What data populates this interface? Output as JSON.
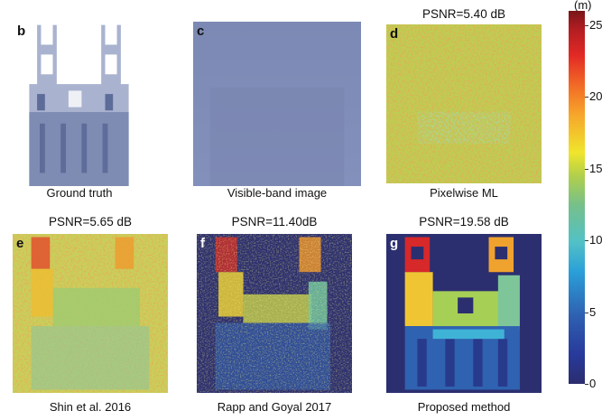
{
  "panels": [
    {
      "letter": "b",
      "caption": "Ground truth",
      "title": ""
    },
    {
      "letter": "c",
      "caption": "Visible-band image",
      "title": ""
    },
    {
      "letter": "d",
      "caption": "Pixelwise ML",
      "title": "PSNR=5.40 dB"
    },
    {
      "letter": "e",
      "caption": "Shin et al. 2016",
      "title": "PSNR=5.65 dB"
    },
    {
      "letter": "f",
      "caption": "Rapp and Goyal 2017",
      "title": "PSNR=11.40dB"
    },
    {
      "letter": "g",
      "caption": "Proposed method",
      "title": "PSNR=19.58 dB"
    }
  ],
  "colorbar": {
    "unit": "(m)",
    "range": [
      0,
      26
    ],
    "ticks": [
      "0",
      "5",
      "10",
      "15",
      "20",
      "25"
    ],
    "colormap": "jet"
  }
}
